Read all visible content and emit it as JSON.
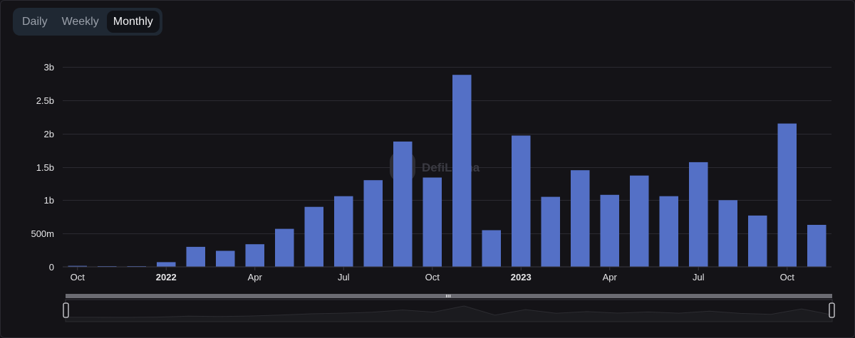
{
  "tabs": [
    {
      "label": "Daily",
      "active": false
    },
    {
      "label": "Weekly",
      "active": false
    },
    {
      "label": "Monthly",
      "active": true
    }
  ],
  "watermark": "DefiLlama",
  "colors": {
    "bar": "#5470c6",
    "background": "#141317"
  },
  "chart_data": {
    "type": "bar",
    "title": "",
    "xlabel": "",
    "ylabel": "",
    "ylim": [
      0,
      3000000000
    ],
    "yticks": [
      {
        "value": 0,
        "label": "0"
      },
      {
        "value": 500000000,
        "label": "500m"
      },
      {
        "value": 1000000000,
        "label": "1b"
      },
      {
        "value": 1500000000,
        "label": "1.5b"
      },
      {
        "value": 2000000000,
        "label": "2b"
      },
      {
        "value": 2500000000,
        "label": "2.5b"
      },
      {
        "value": 3000000000,
        "label": "3b"
      }
    ],
    "categories": [
      "2021-10",
      "2021-11",
      "2021-12",
      "2022-01",
      "2022-02",
      "2022-03",
      "2022-04",
      "2022-05",
      "2022-06",
      "2022-07",
      "2022-08",
      "2022-09",
      "2022-10",
      "2022-11",
      "2022-12",
      "2023-01",
      "2023-02",
      "2023-03",
      "2023-04",
      "2023-05",
      "2023-06",
      "2023-07",
      "2023-08",
      "2023-09",
      "2023-10",
      "2023-11"
    ],
    "values": [
      15000000,
      10000000,
      5000000,
      70000000,
      300000000,
      240000000,
      340000000,
      570000000,
      900000000,
      1060000000,
      1300000000,
      1880000000,
      1340000000,
      2880000000,
      550000000,
      1970000000,
      1050000000,
      1450000000,
      1080000000,
      1370000000,
      1060000000,
      1570000000,
      1000000000,
      770000000,
      2150000000,
      630000000
    ],
    "xticks": [
      {
        "index": 0,
        "label": "Oct",
        "bold": false
      },
      {
        "index": 3,
        "label": "2022",
        "bold": true
      },
      {
        "index": 6,
        "label": "Apr",
        "bold": false
      },
      {
        "index": 9,
        "label": "Jul",
        "bold": false
      },
      {
        "index": 12,
        "label": "Oct",
        "bold": false
      },
      {
        "index": 15,
        "label": "2023",
        "bold": true
      },
      {
        "index": 18,
        "label": "Apr",
        "bold": false
      },
      {
        "index": 21,
        "label": "Jul",
        "bold": false
      },
      {
        "index": 24,
        "label": "Oct",
        "bold": false
      }
    ],
    "grid": true,
    "legend": "none"
  }
}
